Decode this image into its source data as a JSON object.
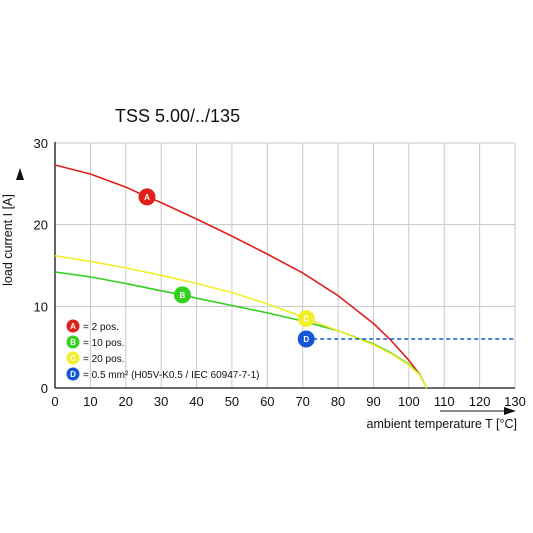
{
  "chart_data": {
    "type": "line",
    "title": "TSS 5.00/../135",
    "xlabel": "ambient temperature T [°C]",
    "ylabel": "load current I [A]",
    "xlim": [
      0,
      130
    ],
    "ylim": [
      0,
      30
    ],
    "xticks": [
      "0",
      "10",
      "20",
      "30",
      "40",
      "50",
      "60",
      "70",
      "80",
      "90",
      "100",
      "110",
      "120",
      "130"
    ],
    "yticks": [
      "0",
      "10",
      "20",
      "30"
    ],
    "grid": true,
    "legend_position": "bottom-left",
    "series": [
      {
        "marker": "A",
        "name": "= 2 pos.",
        "color": "#e0201a",
        "x": [
          0,
          10,
          20,
          26,
          30,
          40,
          50,
          60,
          70,
          80,
          90,
          95,
          100,
          103,
          105
        ],
        "y": [
          27.3,
          26.2,
          24.6,
          23.4,
          22.7,
          20.7,
          18.6,
          16.4,
          14.1,
          11.3,
          7.9,
          5.8,
          3.4,
          1.7,
          0
        ]
      },
      {
        "marker": "B",
        "name": "= 10 pos.",
        "color": "#33d11f",
        "x": [
          0,
          10,
          20,
          30,
          36,
          40,
          50,
          60,
          70,
          80,
          90,
          95,
          100,
          103,
          105
        ],
        "y": [
          14.2,
          13.6,
          12.8,
          11.9,
          11.4,
          11.0,
          10.1,
          9.2,
          8.2,
          7.0,
          5.4,
          4.3,
          2.9,
          1.7,
          0
        ]
      },
      {
        "marker": "C",
        "name": "= 20 pos.",
        "color": "#f2ee2a",
        "x": [
          0,
          10,
          20,
          30,
          40,
          50,
          60,
          70,
          71,
          80,
          90,
          95,
          100,
          103,
          105
        ],
        "y": [
          16.2,
          15.5,
          14.7,
          13.8,
          12.8,
          11.7,
          10.3,
          8.7,
          8.5,
          7.0,
          5.3,
          4.2,
          2.8,
          1.6,
          0
        ]
      },
      {
        "marker": "D",
        "name": "= 0.5 mm² (H05V-K0.5 / IEC 60947-7-1)",
        "color": "#1556d6",
        "dashed": true,
        "x": [
          71,
          130
        ],
        "y": [
          6,
          6
        ]
      }
    ],
    "annotations": [
      {
        "label": "A",
        "x": 26,
        "y": 23.4,
        "color": "#e0201a",
        "text_color": "#ffffff"
      },
      {
        "label": "B",
        "x": 36,
        "y": 11.4,
        "color": "#33d11f",
        "text_color": "#ffffff"
      },
      {
        "label": "C",
        "x": 71,
        "y": 8.5,
        "color": "#f2ee2a",
        "text_color": "#ffffff"
      },
      {
        "label": "D",
        "x": 71,
        "y": 6,
        "color": "#1556d6",
        "text_color": "#ffffff"
      }
    ]
  }
}
